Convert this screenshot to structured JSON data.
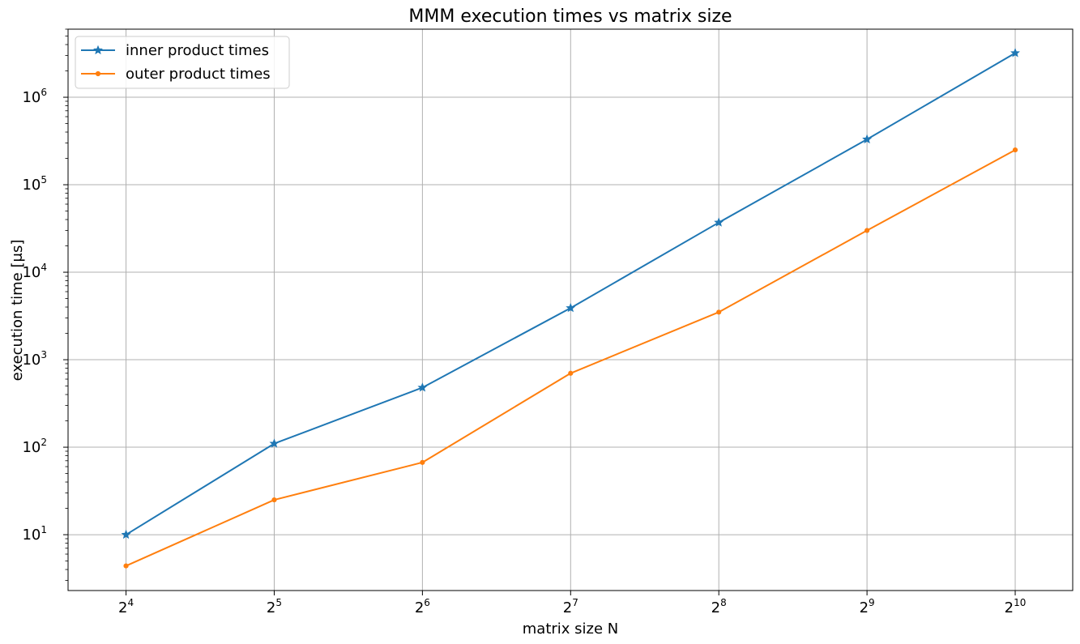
{
  "chart_data": {
    "type": "line",
    "title": "MMM execution times vs matrix size",
    "xlabel": "matrix size N",
    "ylabel": "execution time  [μs]",
    "x_scale": "log2",
    "y_scale": "log10",
    "x": [
      16,
      32,
      64,
      128,
      256,
      512,
      1024
    ],
    "x_tick_labels": [
      {
        "base": "2",
        "exp": "4"
      },
      {
        "base": "2",
        "exp": "5"
      },
      {
        "base": "2",
        "exp": "6"
      },
      {
        "base": "2",
        "exp": "7"
      },
      {
        "base": "2",
        "exp": "8"
      },
      {
        "base": "2",
        "exp": "9"
      },
      {
        "base": "2",
        "exp": "10"
      }
    ],
    "y_tick_labels": [
      {
        "base": "10",
        "exp": "1",
        "value": 10
      },
      {
        "base": "10",
        "exp": "2",
        "value": 100
      },
      {
        "base": "10",
        "exp": "3",
        "value": 1000
      },
      {
        "base": "10",
        "exp": "4",
        "value": 10000
      },
      {
        "base": "10",
        "exp": "5",
        "value": 100000
      },
      {
        "base": "10",
        "exp": "6",
        "value": 1000000
      }
    ],
    "xlim": [
      12.2,
      1340
    ],
    "ylim": [
      2.3,
      6000000
    ],
    "grid": true,
    "legend_position": "top-left",
    "series": [
      {
        "name": "inner product times",
        "color": "#1f77b4",
        "marker": "star",
        "values": [
          10,
          110,
          480,
          3900,
          37000,
          330000,
          3200000
        ]
      },
      {
        "name": "outer product times",
        "color": "#ff7f0e",
        "marker": "dot",
        "values": [
          4.4,
          25,
          67,
          700,
          3500,
          30000,
          250000
        ]
      }
    ]
  }
}
